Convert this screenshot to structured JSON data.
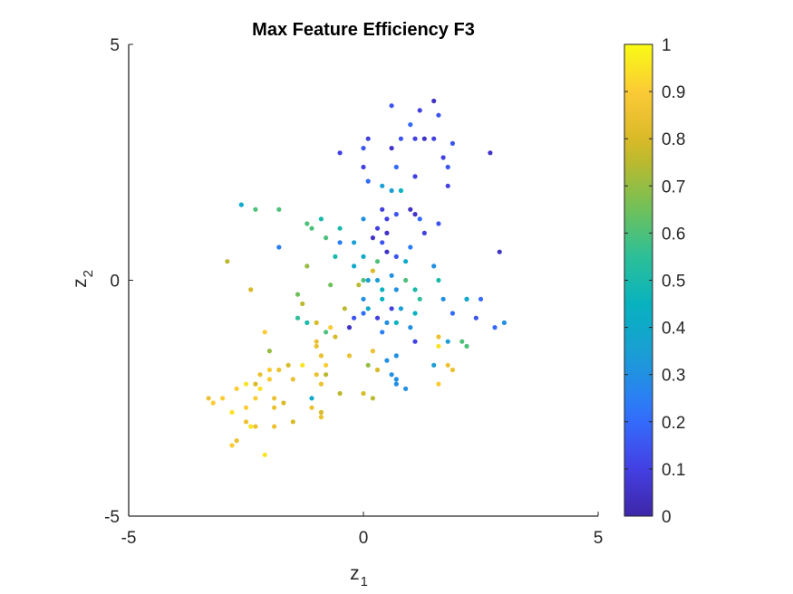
{
  "chart_data": {
    "type": "scatter",
    "title": "Max Feature Efficiency F3",
    "xlabel": {
      "base": "z",
      "sub": "1"
    },
    "ylabel": {
      "base": "z",
      "sub": "2"
    },
    "xlim": [
      -5,
      5
    ],
    "ylim": [
      -5,
      5
    ],
    "xticks": [
      -5,
      0,
      5
    ],
    "yticks": [
      -5,
      0,
      5
    ],
    "xtick_labels": [
      "-5",
      "0",
      "5"
    ],
    "ytick_labels": [
      "-5",
      "0",
      "5"
    ],
    "grid": false,
    "colorbar": {
      "position": "right",
      "colormap": "parula",
      "range": [
        0,
        1
      ],
      "ticks": [
        0,
        0.1,
        0.2,
        0.3,
        0.4,
        0.5,
        0.6,
        0.7,
        0.8,
        0.9,
        1
      ],
      "tick_labels": [
        "0",
        "0.1",
        "0.2",
        "0.3",
        "0.4",
        "0.5",
        "0.6",
        "0.7",
        "0.8",
        "0.9",
        "1"
      ]
    },
    "colormap_stops": [
      "#3e26a8",
      "#4443e8",
      "#2f75fe",
      "#1d9cd6",
      "#06b1c0",
      "#2ec096",
      "#7cc050",
      "#d0b724",
      "#fbc638",
      "#f9fb15"
    ],
    "points": [
      [
        1.5,
        3.8,
        0.05
      ],
      [
        0.6,
        3.7,
        0.15
      ],
      [
        1.2,
        3.6,
        0.1
      ],
      [
        1.6,
        3.5,
        0.15
      ],
      [
        1.0,
        3.3,
        0.2
      ],
      [
        1.1,
        3.0,
        0.1
      ],
      [
        1.3,
        3.0,
        0.05
      ],
      [
        0.8,
        3.0,
        0.15
      ],
      [
        1.5,
        3.0,
        0.1
      ],
      [
        1.9,
        2.9,
        0.15
      ],
      [
        0.1,
        3.0,
        0.1
      ],
      [
        0.0,
        2.8,
        0.15
      ],
      [
        0.6,
        2.8,
        0.05
      ],
      [
        -0.5,
        2.7,
        0.1
      ],
      [
        2.7,
        2.7,
        0.05
      ],
      [
        1.7,
        2.6,
        0.1
      ],
      [
        1.8,
        2.4,
        0.15
      ],
      [
        0.7,
        2.4,
        0.2
      ],
      [
        0.0,
        2.4,
        0.1
      ],
      [
        1.1,
        2.2,
        0.1
      ],
      [
        0.1,
        2.1,
        0.2
      ],
      [
        1.8,
        2.0,
        0.1
      ],
      [
        0.4,
        2.0,
        0.35
      ],
      [
        0.6,
        1.9,
        0.35
      ],
      [
        0.8,
        1.9,
        0.45
      ],
      [
        1.0,
        1.5,
        0.05
      ],
      [
        -2.6,
        1.6,
        0.4
      ],
      [
        0.4,
        1.5,
        0.1
      ],
      [
        1.1,
        1.4,
        0.05
      ],
      [
        0.7,
        1.4,
        0.15
      ],
      [
        0.5,
        1.3,
        0.1
      ],
      [
        1.2,
        1.3,
        0.2
      ],
      [
        0.0,
        1.3,
        0.3
      ],
      [
        1.6,
        1.2,
        0.15
      ],
      [
        -1.8,
        1.5,
        0.6
      ],
      [
        -2.3,
        1.5,
        0.6
      ],
      [
        -0.9,
        1.3,
        0.5
      ],
      [
        -1.2,
        1.2,
        0.6
      ],
      [
        -1.1,
        1.1,
        0.6
      ],
      [
        -0.5,
        1.1,
        0.5
      ],
      [
        0.3,
        1.1,
        0.1
      ],
      [
        0.5,
        1.0,
        0.05
      ],
      [
        1.3,
        1.0,
        0.1
      ],
      [
        0.2,
        0.9,
        0.05
      ],
      [
        -0.8,
        0.9,
        0.6
      ],
      [
        -0.5,
        0.8,
        0.25
      ],
      [
        -0.2,
        0.8,
        0.35
      ],
      [
        0.4,
        0.8,
        0.15
      ],
      [
        1.0,
        0.7,
        0.25
      ],
      [
        0.5,
        0.6,
        0.05
      ],
      [
        -1.8,
        0.7,
        0.25
      ],
      [
        -0.6,
        0.5,
        0.5
      ],
      [
        0.7,
        0.5,
        0.15
      ],
      [
        0.0,
        0.5,
        0.4
      ],
      [
        0.3,
        0.4,
        0.6
      ],
      [
        -2.9,
        0.4,
        0.75
      ],
      [
        -1.2,
        0.3,
        0.7
      ],
      [
        0.9,
        0.4,
        0.4
      ],
      [
        1.6,
        0.0,
        0.5
      ],
      [
        0.2,
        0.2,
        0.8
      ],
      [
        0.3,
        0.0,
        0.35
      ],
      [
        0.6,
        0.1,
        0.3
      ],
      [
        0.1,
        0.0,
        0.35
      ],
      [
        -0.1,
        -0.1,
        0.75
      ],
      [
        0.9,
        0.0,
        0.6
      ],
      [
        -0.7,
        -0.1,
        0.65
      ],
      [
        0.4,
        -0.2,
        0.45
      ],
      [
        1.1,
        -0.2,
        0.5
      ],
      [
        0.7,
        -0.2,
        0.3
      ],
      [
        -2.4,
        -0.2,
        0.8
      ],
      [
        -1.4,
        -0.3,
        0.65
      ],
      [
        0.0,
        -0.4,
        0.3
      ],
      [
        0.4,
        -0.4,
        0.45
      ],
      [
        1.2,
        -0.4,
        0.55
      ],
      [
        1.7,
        -0.4,
        0.3
      ],
      [
        2.2,
        -0.4,
        0.25
      ],
      [
        2.5,
        -0.4,
        0.2
      ],
      [
        -1.3,
        -0.5,
        0.75
      ],
      [
        -0.4,
        -0.6,
        0.75
      ],
      [
        0.1,
        -0.6,
        0.4
      ],
      [
        0.6,
        -0.6,
        0.1
      ],
      [
        0.8,
        -0.6,
        0.35
      ],
      [
        1.1,
        -0.7,
        0.45
      ],
      [
        0.0,
        -0.7,
        0.2
      ],
      [
        -0.2,
        -0.8,
        0.15
      ],
      [
        0.3,
        -0.8,
        0.1
      ],
      [
        0.5,
        -0.9,
        0.3
      ],
      [
        0.7,
        -0.9,
        0.45
      ],
      [
        1.9,
        -0.7,
        0.2
      ],
      [
        2.4,
        -0.8,
        0.15
      ],
      [
        -1.4,
        -0.8,
        0.55
      ],
      [
        -1.0,
        -0.9,
        0.8
      ],
      [
        -0.7,
        -1.0,
        0.9
      ],
      [
        1.0,
        -1.0,
        0.3
      ],
      [
        0.4,
        -1.1,
        0.25
      ],
      [
        -0.8,
        -1.1,
        0.6
      ],
      [
        -0.3,
        -1.0,
        0.05
      ],
      [
        2.8,
        -1.0,
        0.2
      ],
      [
        3.0,
        -0.9,
        0.3
      ],
      [
        -2.1,
        -1.1,
        0.9
      ],
      [
        -1.0,
        -1.3,
        0.85
      ],
      [
        -0.6,
        -1.2,
        0.8
      ],
      [
        1.6,
        -1.2,
        0.85
      ],
      [
        1.8,
        -1.3,
        0.35
      ],
      [
        2.1,
        -1.3,
        0.6
      ],
      [
        1.6,
        -1.4,
        0.95
      ],
      [
        -1.0,
        -1.4,
        0.85
      ],
      [
        1.1,
        -1.3,
        0.1
      ],
      [
        2.2,
        -1.4,
        0.6
      ],
      [
        -0.9,
        -1.6,
        0.85
      ],
      [
        -2.0,
        -1.5,
        0.7
      ],
      [
        0.2,
        -1.5,
        0.85
      ],
      [
        0.7,
        -1.6,
        0.3
      ],
      [
        -0.3,
        -1.6,
        0.85
      ],
      [
        0.5,
        -1.7,
        0.3
      ],
      [
        -1.6,
        -1.8,
        0.8
      ],
      [
        -1.3,
        -1.8,
        0.95
      ],
      [
        -0.8,
        -1.8,
        0.9
      ],
      [
        0.1,
        -1.8,
        0.7
      ],
      [
        -2.0,
        -1.9,
        0.9
      ],
      [
        -1.8,
        -1.9,
        0.85
      ],
      [
        1.5,
        -1.8,
        0.35
      ],
      [
        1.8,
        -1.8,
        0.85
      ],
      [
        0.3,
        -1.9,
        0.8
      ],
      [
        1.9,
        -1.9,
        0.85
      ],
      [
        -2.2,
        -2.0,
        0.85
      ],
      [
        -1.5,
        -2.1,
        0.85
      ],
      [
        -1.0,
        -2.0,
        0.85
      ],
      [
        -0.8,
        -2.0,
        0.75
      ],
      [
        -2.0,
        -2.1,
        0.9
      ],
      [
        0.7,
        -2.1,
        0.3
      ],
      [
        0.6,
        -2.0,
        0.3
      ],
      [
        -2.5,
        -2.2,
        0.95
      ],
      [
        -2.3,
        -2.2,
        0.8
      ],
      [
        0.7,
        -2.2,
        0.3
      ],
      [
        1.6,
        -2.2,
        0.9
      ],
      [
        -0.9,
        -2.2,
        0.85
      ],
      [
        -2.7,
        -2.3,
        0.9
      ],
      [
        -2.2,
        -2.3,
        0.95
      ],
      [
        0.9,
        -2.3,
        0.3
      ],
      [
        -3.0,
        -2.5,
        0.9
      ],
      [
        -0.5,
        -2.4,
        0.75
      ],
      [
        -2.3,
        -2.5,
        0.9
      ],
      [
        -1.9,
        -2.5,
        0.85
      ],
      [
        0.0,
        -2.4,
        0.8
      ],
      [
        -3.3,
        -2.5,
        0.85
      ],
      [
        -1.1,
        -2.5,
        0.4
      ],
      [
        0.2,
        -2.5,
        0.75
      ],
      [
        -1.7,
        -2.6,
        0.8
      ],
      [
        -3.2,
        -2.6,
        0.9
      ],
      [
        -1.1,
        -2.7,
        0.85
      ],
      [
        -2.5,
        -2.7,
        0.9
      ],
      [
        -2.8,
        -2.8,
        0.95
      ],
      [
        -0.9,
        -2.8,
        0.8
      ],
      [
        -1.9,
        -2.7,
        0.85
      ],
      [
        -2.5,
        -3.0,
        0.85
      ],
      [
        -1.5,
        -3.0,
        0.8
      ],
      [
        -0.9,
        -2.9,
        0.85
      ],
      [
        -2.3,
        -3.1,
        0.85
      ],
      [
        -1.9,
        -3.1,
        0.85
      ],
      [
        -2.4,
        -3.1,
        0.95
      ],
      [
        -2.7,
        -3.4,
        0.85
      ],
      [
        -2.8,
        -3.5,
        0.9
      ],
      [
        -2.1,
        -3.7,
        0.95
      ],
      [
        2.9,
        0.6,
        0.05
      ],
      [
        -1.2,
        -0.9,
        0.5
      ],
      [
        0.0,
        0.0,
        0.6
      ],
      [
        1.5,
        0.3,
        0.3
      ],
      [
        -0.2,
        0.3,
        0.4
      ],
      [
        2.2,
        -0.4,
        0.4
      ]
    ]
  }
}
